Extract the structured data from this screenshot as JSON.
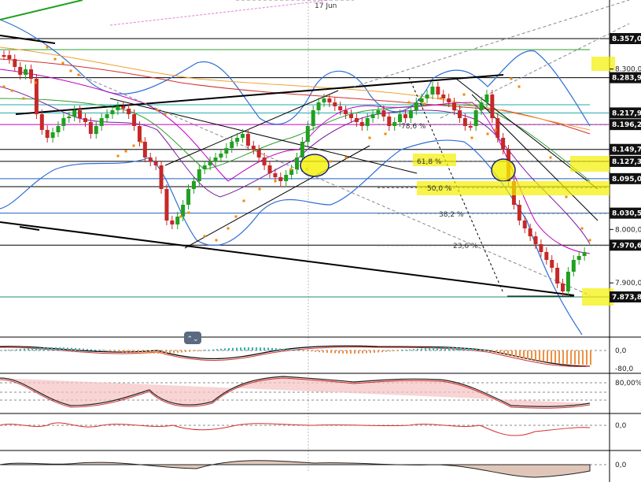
{
  "chart_data": {
    "type": "candlestick",
    "date_label": "17 Jun",
    "price_axis": {
      "range": [
        7.8,
        8.4
      ],
      "ticks": [
        {
          "value": 8.3,
          "label": "8.300,0"
        },
        {
          "value": 8.0,
          "label": "8.000,0"
        },
        {
          "value": 7.9,
          "label": "7.900,0"
        }
      ]
    },
    "price_tags": [
      {
        "value": 8.357,
        "label": "8.357,0"
      },
      {
        "value": 8.2839,
        "label": "8.283,9"
      },
      {
        "value": 8.2179,
        "label": "8.217,9"
      },
      {
        "value": 8.1962,
        "label": "8.196,2"
      },
      {
        "value": 8.1497,
        "label": "8.149,7"
      },
      {
        "value": 8.1273,
        "label": "8.127,3"
      },
      {
        "value": 8.095,
        "label": "8.095,0"
      },
      {
        "value": 8.0305,
        "label": "8.030,5"
      },
      {
        "value": 7.9706,
        "label": "7.970,6"
      },
      {
        "value": 7.8738,
        "label": "7.873,8"
      }
    ],
    "fib_levels": [
      {
        "label": "78,6 %",
        "value": 8.196
      },
      {
        "label": "61,8 %",
        "value": 8.127
      },
      {
        "label": "50,0 %",
        "value": 8.078
      },
      {
        "label": "38,2 %",
        "value": 8.03
      },
      {
        "label": "23,6 %",
        "value": 7.97
      }
    ],
    "indicator_panels": [
      {
        "ticks": [
          "0,0",
          "-80,0"
        ]
      },
      {
        "ticks": [
          "80,00%"
        ]
      },
      {
        "ticks": [
          "0,0"
        ]
      },
      {
        "ticks": [
          "0,0"
        ]
      }
    ]
  }
}
